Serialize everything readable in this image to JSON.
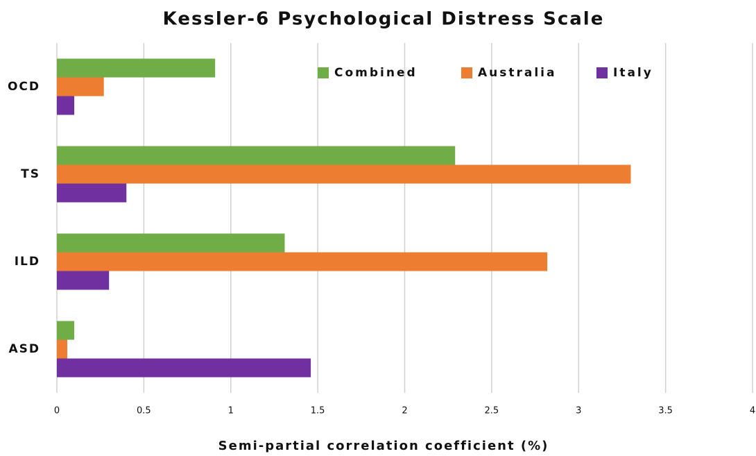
{
  "chart_data": {
    "type": "barh",
    "title": "Kessler-6 Psychological Distress Scale",
    "x_label": "Semi-partial correlation coefficient (%)",
    "categories": [
      "OCD",
      "TS",
      "ILD",
      "ASD"
    ],
    "series": [
      {
        "name": "Combined",
        "color": "#70ad47",
        "values": [
          0.91,
          2.29,
          1.31,
          0.1
        ]
      },
      {
        "name": "Australia",
        "color": "#ed7d31",
        "values": [
          0.27,
          3.3,
          2.82,
          0.06
        ]
      },
      {
        "name": "Italy",
        "color": "#7030a0",
        "values": [
          0.1,
          0.4,
          0.3,
          1.46
        ]
      }
    ],
    "xlim": [
      0,
      4
    ],
    "xticks": [
      0,
      0.5,
      1,
      1.5,
      2,
      2.5,
      3,
      3.5,
      4
    ],
    "grid": true,
    "legend": "top"
  }
}
